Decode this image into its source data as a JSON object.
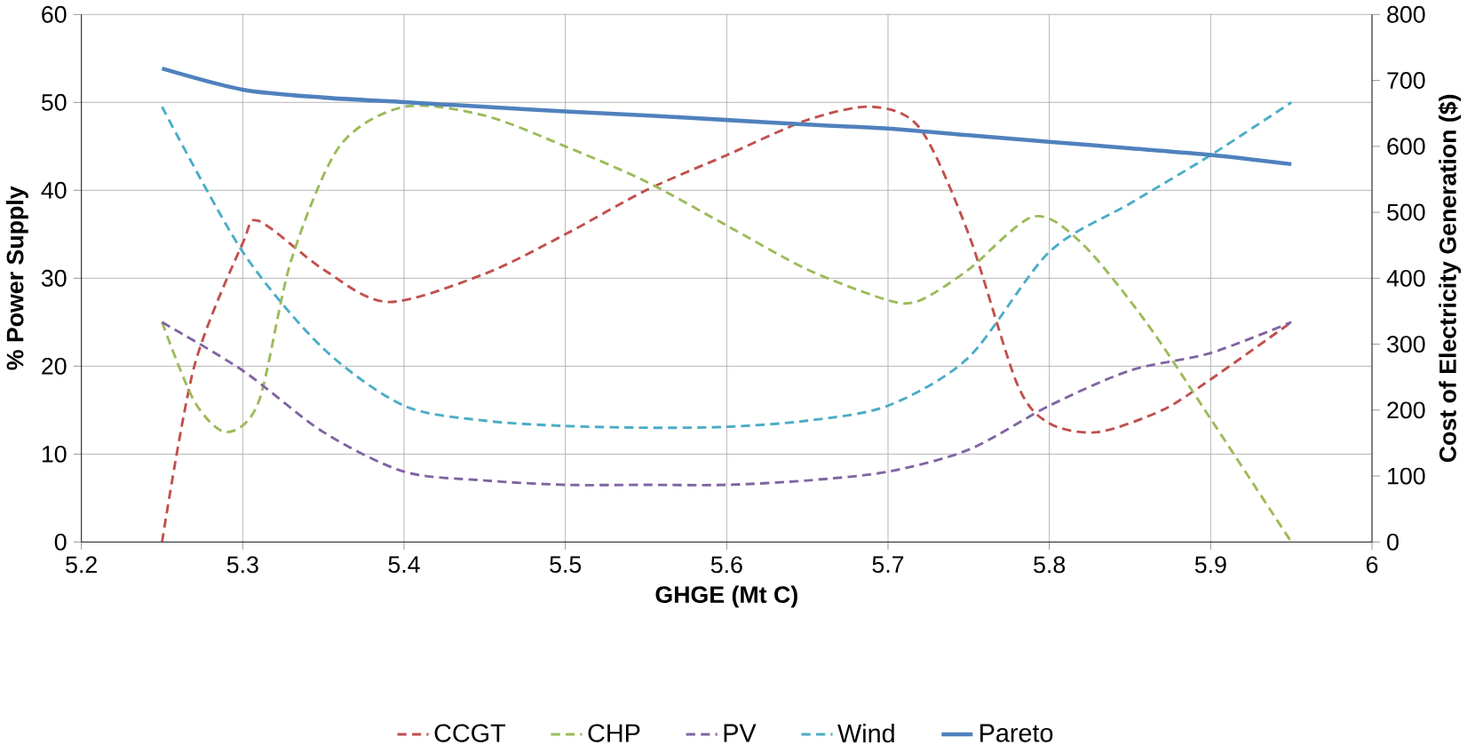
{
  "chart_data": {
    "type": "line",
    "xlabel": "GHGE (Mt C)",
    "ylabel": "% Power Supply",
    "y2label": "Cost of Electricity Generation ($)",
    "xlim": [
      5.2,
      6
    ],
    "xticks": [
      5.2,
      5.3,
      5.4,
      5.5,
      5.6,
      5.7,
      5.8,
      5.9,
      6
    ],
    "ylim": [
      0,
      60
    ],
    "yticks": [
      0,
      10,
      20,
      30,
      40,
      50,
      60
    ],
    "y2lim": [
      0,
      800
    ],
    "y2ticks": [
      0,
      100,
      200,
      300,
      400,
      500,
      600,
      700,
      800
    ],
    "grid": true,
    "legend": "bottom",
    "x": [
      5.25,
      5.3,
      5.35,
      5.4,
      5.45,
      5.5,
      5.55,
      5.6,
      5.65,
      5.7,
      5.75,
      5.8,
      5.85,
      5.9,
      5.95
    ],
    "series": [
      {
        "name": "CCGT",
        "color": "#c0504d",
        "line_style": "dashed",
        "x": [
          5.25,
          5.27,
          5.3,
          5.31,
          5.35,
          5.39,
          5.45,
          5.5,
          5.55,
          5.6,
          5.65,
          5.69,
          5.72,
          5.75,
          5.78,
          5.8,
          5.83,
          5.87,
          5.9,
          5.95
        ],
        "values": [
          0,
          20,
          34,
          36.5,
          31,
          27.3,
          30.5,
          35,
          40,
          44,
          48,
          49.5,
          47,
          35,
          18,
          13.5,
          12.5,
          15,
          18.5,
          25
        ]
      },
      {
        "name": "CHP",
        "color": "#9bbb59",
        "line_style": "dashed",
        "x": [
          5.25,
          5.27,
          5.29,
          5.31,
          5.33,
          5.36,
          5.4,
          5.45,
          5.5,
          5.55,
          5.6,
          5.65,
          5.7,
          5.72,
          5.75,
          5.79,
          5.82,
          5.86,
          5.9,
          5.95
        ],
        "values": [
          25,
          16,
          12.5,
          16,
          32,
          45,
          49.5,
          48.5,
          45,
          41,
          36,
          31,
          27.5,
          27.5,
          31,
          37,
          34,
          25,
          14,
          0
        ]
      },
      {
        "name": "PV",
        "color": "#8064a2",
        "line_style": "dashed",
        "values": [
          25,
          19.5,
          12.5,
          8,
          7,
          6.5,
          6.5,
          6.5,
          7,
          8,
          10.5,
          15.5,
          19.5,
          21.5,
          25
        ]
      },
      {
        "name": "Wind",
        "color": "#4bacc6",
        "line_style": "dashed",
        "values": [
          49.5,
          33,
          22,
          15.5,
          13.8,
          13.2,
          13,
          13.1,
          13.8,
          15.5,
          21,
          33,
          38.5,
          44,
          50
        ]
      },
      {
        "name": "Pareto",
        "color": "#4f81bd",
        "line_style": "solid",
        "axis": "y2",
        "values": [
          718,
          686,
          674,
          667,
          660,
          653,
          647,
          640,
          633,
          627,
          617,
          607,
          597,
          587,
          573
        ]
      }
    ]
  }
}
